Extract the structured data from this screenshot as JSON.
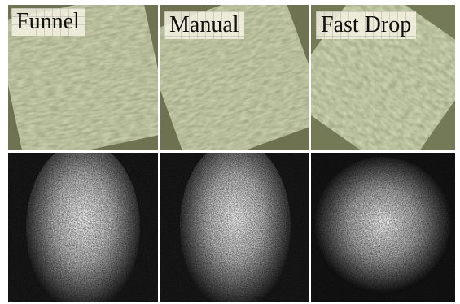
{
  "panels": [
    {
      "label": "Funnel"
    },
    {
      "label": "Manual"
    },
    {
      "label": "Fast Drop"
    }
  ]
}
